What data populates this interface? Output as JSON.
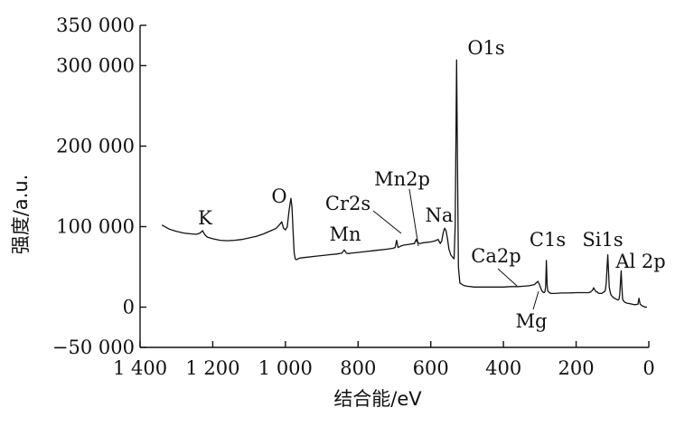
{
  "chart_data": {
    "type": "line",
    "title": "",
    "xlabel": "结合能/eV",
    "ylabel": "强度/a.u.",
    "xlim": [
      1400,
      0
    ],
    "ylim": [
      -50000,
      350000
    ],
    "x_reversed": true,
    "grid": false,
    "x_ticks": [
      1400,
      1200,
      1000,
      800,
      600,
      400,
      200,
      0
    ],
    "x_tick_labels": [
      "1 400",
      "1 200",
      "1 000",
      "800",
      "600",
      "400",
      "200",
      "0"
    ],
    "y_ticks": [
      -50000,
      0,
      100000,
      200000,
      300000,
      350000
    ],
    "y_tick_labels": [
      "−50 000",
      "0",
      "100 000",
      "200 000",
      "300 000",
      "350 000"
    ],
    "series": [
      {
        "x": [
          1340,
          1320,
          1300,
          1280,
          1260,
          1245,
          1235,
          1228,
          1222,
          1215,
          1200,
          1180,
          1160,
          1140,
          1120,
          1100,
          1080,
          1060,
          1040,
          1025,
          1015,
          1010,
          1005,
          1000,
          995,
          990,
          985,
          982,
          979,
          976,
          973,
          970,
          965,
          960,
          940,
          920,
          900,
          880,
          860,
          845,
          838,
          832,
          826,
          820,
          800,
          780,
          760,
          740,
          720,
          705,
          698,
          694,
          690,
          686,
          682,
          675,
          660,
          645,
          640,
          636,
          630,
          620,
          600,
          590,
          580,
          574,
          570,
          566,
          562,
          558,
          554,
          550,
          545,
          540,
          536,
          533,
          531,
          529,
          527,
          524,
          520,
          510,
          500,
          480,
          460,
          440,
          420,
          400,
          380,
          360,
          345,
          330,
          315,
          305,
          300,
          297,
          294,
          291,
          288,
          286,
          284,
          283,
          282,
          281,
          280,
          278,
          274,
          268,
          260,
          240,
          220,
          200,
          180,
          165,
          160,
          155,
          152,
          148,
          145,
          142,
          140,
          138,
          130,
          120,
          117,
          115,
          113,
          111,
          109,
          106,
          104,
          102,
          100,
          98,
          96,
          94,
          92,
          90,
          88,
          86,
          84,
          82,
          80,
          78,
          76,
          74,
          72,
          70,
          66,
          60,
          50,
          40,
          30,
          27,
          24,
          20,
          15,
          10,
          5
        ],
        "y": [
          102000,
          97000,
          94000,
          92000,
          91000,
          90500,
          92000,
          95000,
          90000,
          87000,
          85000,
          83000,
          82500,
          83000,
          84000,
          86000,
          88000,
          91000,
          95000,
          98000,
          103000,
          106000,
          98000,
          96000,
          100000,
          120000,
          135000,
          125000,
          95000,
          68000,
          60000,
          59000,
          60000,
          61000,
          62000,
          63000,
          64000,
          65000,
          66000,
          67000,
          71000,
          67000,
          66500,
          67000,
          68000,
          69000,
          70000,
          71000,
          72000,
          73000,
          74000,
          83000,
          74000,
          75000,
          76000,
          77000,
          78000,
          79000,
          84000,
          80000,
          79000,
          80000,
          81000,
          82000,
          84000,
          79000,
          82000,
          92000,
          98000,
          95000,
          85000,
          72000,
          65000,
          62000,
          60000,
          100000,
          200000,
          307000,
          200000,
          50000,
          30000,
          27000,
          26000,
          25000,
          25000,
          25000,
          25000,
          25000,
          25500,
          25500,
          26000,
          26500,
          28000,
          32000,
          27000,
          23000,
          20000,
          18500,
          18000,
          19000,
          25000,
          40000,
          58000,
          45000,
          28000,
          20000,
          18000,
          17000,
          17000,
          17500,
          17500,
          18000,
          18000,
          18000,
          19000,
          21000,
          24000,
          21000,
          19000,
          19000,
          18000,
          17000,
          17000,
          20000,
          30000,
          50000,
          65000,
          45000,
          25000,
          18000,
          15000,
          14000,
          13000,
          12000,
          11500,
          11000,
          10500,
          10000,
          9500,
          9000,
          9000,
          10000,
          15000,
          30000,
          45000,
          25000,
          10000,
          8000,
          6000,
          5000,
          4000,
          3000,
          3500,
          11000,
          4000,
          2000,
          1000,
          0,
          0
        ],
        "name": ""
      }
    ],
    "annotations": [
      {
        "text": "K",
        "x": 1228
      },
      {
        "text": "O",
        "x": 980
      },
      {
        "text": "Mn",
        "x": 838
      },
      {
        "text": "Cr2s",
        "x": 686
      },
      {
        "text": "Mn2p",
        "x": 640
      },
      {
        "text": "Na",
        "x": 562
      },
      {
        "text": "O1s",
        "x": 531
      },
      {
        "text": "Ca2p",
        "x": 345
      },
      {
        "text": "Mg",
        "x": 305
      },
      {
        "text": "C1s",
        "x": 284
      },
      {
        "text": "Si1s",
        "x": 113
      },
      {
        "text": "Al 2p",
        "x": 78
      }
    ]
  }
}
